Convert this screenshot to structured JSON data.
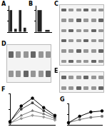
{
  "chart_data": [
    {
      "type": "bar",
      "title": "A",
      "categories": [
        null,
        null,
        null,
        null
      ],
      "values": [
        1.0,
        0.15,
        1.0,
        0.2
      ],
      "color": "#222222",
      "ylim": [
        0,
        1.2
      ],
      "yticks": [
        0,
        0.5,
        1
      ],
      "tick_labels": false
    },
    {
      "type": "bar",
      "title": "B",
      "categories": [
        null,
        null
      ],
      "values": [
        1.0,
        0.1
      ],
      "color": "#222222",
      "ylim": [
        0,
        1.2
      ],
      "yticks": [
        0,
        0.5,
        1
      ],
      "tick_labels": false
    },
    {
      "type": "line",
      "title": "F",
      "categories": [
        null,
        null,
        null,
        null,
        null
      ],
      "ylim": [
        0,
        100
      ],
      "yticks": [
        0,
        50,
        100
      ],
      "tick_labels": false,
      "series": [
        {
          "color": "#000000",
          "marker": "circle",
          "values": [
            10,
            60,
            85,
            55,
            30
          ]
        },
        {
          "color": "#444444",
          "marker": "square",
          "values": [
            10,
            50,
            70,
            45,
            25
          ]
        },
        {
          "color": "#777777",
          "marker": "triangle",
          "values": [
            5,
            30,
            45,
            35,
            20
          ]
        },
        {
          "color": "#999999",
          "marker": "diamond",
          "values": [
            5,
            20,
            30,
            25,
            15
          ]
        }
      ]
    },
    {
      "type": "line",
      "title": "G",
      "categories": [
        null,
        null,
        null,
        null
      ],
      "ylim": [
        0,
        100
      ],
      "yticks": [
        0,
        50,
        100
      ],
      "tick_labels": false,
      "series": [
        {
          "color": "#000000",
          "marker": "circle",
          "values": [
            10,
            40,
            60,
            65
          ]
        },
        {
          "color": "#777777",
          "marker": "square",
          "values": [
            10,
            25,
            35,
            40
          ]
        }
      ]
    }
  ],
  "blots": [
    {
      "panel": "C",
      "lanes": 6,
      "rows": 6
    },
    {
      "panel": "D",
      "lanes": 6,
      "rows": 2
    },
    {
      "panel": "E",
      "lanes": 6,
      "rows": 2
    }
  ]
}
